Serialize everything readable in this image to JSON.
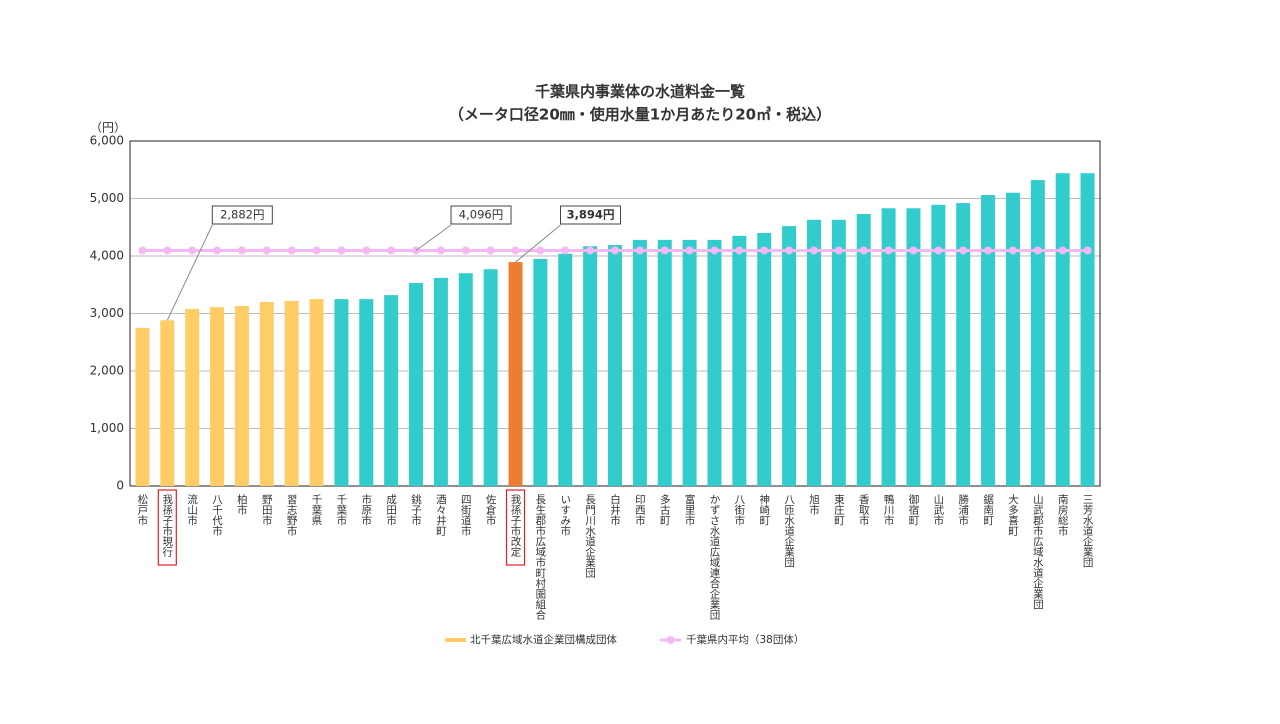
{
  "chart_data": {
    "type": "bar",
    "title": "千葉県内事業体の水道料金一覧",
    "subtitle": "（メータ口径20㎜・使用水量1か月あたり20㎥・税込）",
    "y_unit": "（円）",
    "categories": [
      "松戸市",
      "我孫子市現行",
      "流山市",
      "八千代市",
      "柏市",
      "野田市",
      "習志野市",
      "千葉県",
      "千葉市",
      "市原市",
      "成田市",
      "銚子市",
      "酒々井町",
      "四街道市",
      "佐倉市",
      "我孫子市改定",
      "長生郡市広域市町村圏組合",
      "いすみ市",
      "長門川水道企業団",
      "白井市",
      "印西市",
      "多古町",
      "富里市",
      "かずさ水道広域連合企業団",
      "八街市",
      "神崎町",
      "八匝水道企業団",
      "旭市",
      "東庄町",
      "香取市",
      "鴨川市",
      "御宿町",
      "山武市",
      "勝浦市",
      "鋸南町",
      "大多喜町",
      "山武郡市広域水道企業団",
      "南房総市",
      "三芳水道企業団"
    ],
    "values": [
      2750,
      2882,
      3080,
      3110,
      3130,
      3200,
      3220,
      3250,
      3250,
      3250,
      3320,
      3530,
      3620,
      3700,
      3770,
      3894,
      3950,
      4040,
      4170,
      4190,
      4280,
      4280,
      4280,
      4280,
      4350,
      4400,
      4520,
      4630,
      4630,
      4730,
      4830,
      4830,
      4890,
      4920,
      5060,
      5100,
      5320,
      5440,
      5440
    ],
    "bar_colors": [
      "#ffcc66",
      "#ffcc66",
      "#ffcc66",
      "#ffcc66",
      "#ffcc66",
      "#ffcc66",
      "#ffcc66",
      "#ffcc66",
      "#33cccc",
      "#33cccc",
      "#33cccc",
      "#33cccc",
      "#33cccc",
      "#33cccc",
      "#33cccc",
      "#ed7d31",
      "#33cccc",
      "#33cccc",
      "#33cccc",
      "#33cccc",
      "#33cccc",
      "#33cccc",
      "#33cccc",
      "#33cccc",
      "#33cccc",
      "#33cccc",
      "#33cccc",
      "#33cccc",
      "#33cccc",
      "#33cccc",
      "#33cccc",
      "#33cccc",
      "#33cccc",
      "#33cccc",
      "#33cccc",
      "#33cccc",
      "#33cccc",
      "#33cccc",
      "#33cccc"
    ],
    "highlight_categories": [
      "我孫子市現行",
      "我孫子市改定"
    ],
    "legend_group": {
      "name": "北千葉広域水道企業団構成団体",
      "color": "#ffcc66"
    },
    "average": {
      "name": "千葉県内平均（38団体）",
      "color": "#f5b8f5",
      "value": 4096
    },
    "annotations": [
      {
        "text": "2,882円",
        "category": "我孫子市現行",
        "color": "#333333"
      },
      {
        "text": "4,096円",
        "category": "銚子市",
        "color": "#333333"
      },
      {
        "text": "3,894円",
        "category": "我孫子市改定",
        "color": "#e02020"
      }
    ],
    "ylim": [
      0,
      6000
    ],
    "yticks": [
      0,
      {
        "value": 1000,
        "label": "1,000"
      },
      {
        "value": 2000,
        "label": "2,000"
      },
      {
        "value": 3000,
        "label": "3,000"
      },
      {
        "value": 4000,
        "label": "4,000"
      },
      {
        "value": 5000,
        "label": "5,000"
      },
      {
        "value": 6000,
        "label": "6,000"
      }
    ],
    "grid": true
  }
}
